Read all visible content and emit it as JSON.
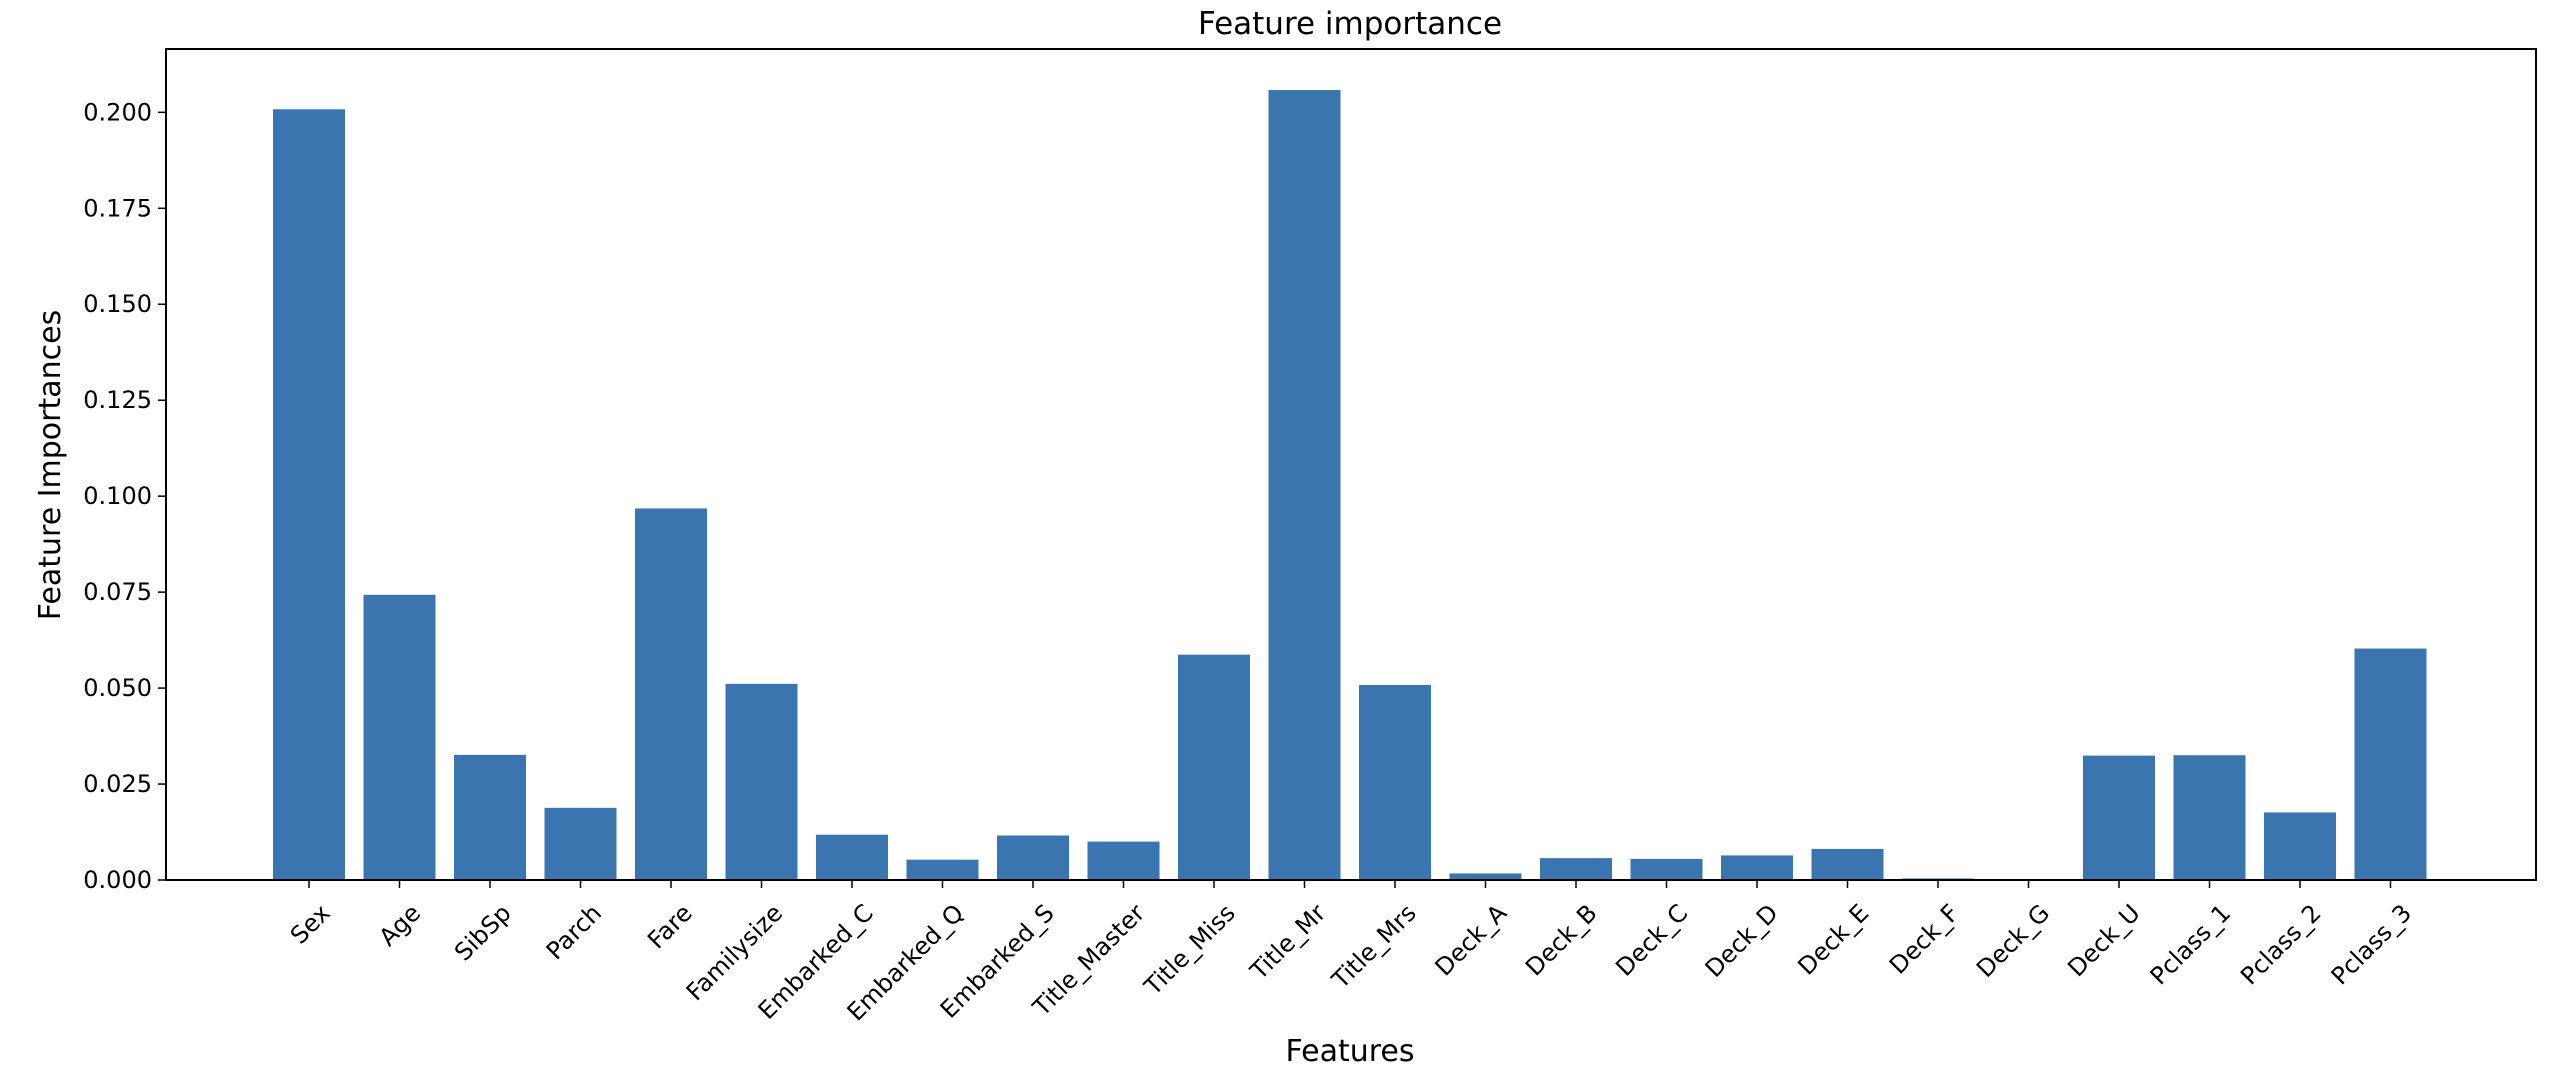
{
  "chart_data": {
    "type": "bar",
    "title": "Feature importance",
    "xlabel": "Features",
    "ylabel": "Feature Importances",
    "categories": [
      "Sex",
      "Age",
      "SibSp",
      "Parch",
      "Fare",
      "Familysize",
      "Embarked_C",
      "Embarked_Q",
      "Embarked_S",
      "Title_Master",
      "Title_Miss",
      "Title_Mr",
      "Title_Mrs",
      "Deck_A",
      "Deck_B",
      "Deck_C",
      "Deck_D",
      "Deck_E",
      "Deck_F",
      "Deck_G",
      "Deck_U",
      "Pclass_1",
      "Pclass_2",
      "Pclass_3"
    ],
    "values": [
      0.2008,
      0.0743,
      0.0326,
      0.0188,
      0.0968,
      0.0511,
      0.0118,
      0.0053,
      0.0116,
      0.01,
      0.0587,
      0.2058,
      0.0508,
      0.0017,
      0.0057,
      0.0055,
      0.0064,
      0.0081,
      0.0004,
      0.0001,
      0.0324,
      0.0325,
      0.0176,
      0.0603
    ],
    "yticks": [
      "0.000",
      "0.025",
      "0.050",
      "0.075",
      "0.100",
      "0.125",
      "0.150",
      "0.175",
      "0.200"
    ],
    "ylim": [
      0,
      0.2165
    ],
    "grid": false,
    "bar_color": "#3a75af"
  }
}
